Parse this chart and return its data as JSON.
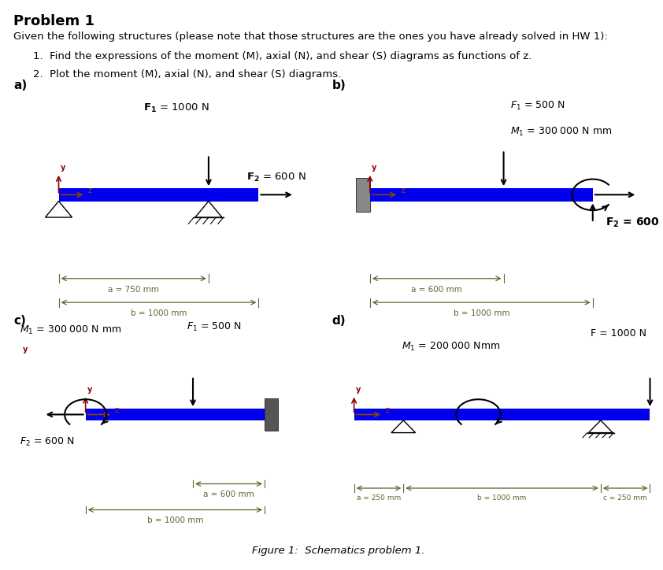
{
  "title": "Problem 1",
  "intro": "Given the following structures (please note that those structures are the ones you have already solved in HW 1):",
  "item1": "1.  Find the expressions of the moment (M), axial (N), and shear (S) diagrams as functions of z.",
  "item2": "2.  Plot the moment (M), axial (N), and shear (S) diagrams.",
  "caption": "Figure 1:  Schematics problem 1.",
  "beam_color": "#0000EE",
  "wall_color": "#555555",
  "arrow_color": "#000000",
  "y_axis_color": "#8B0000",
  "z_axis_color": "#8B4500",
  "dim_color": "#556B2F",
  "text_color": "#000000"
}
